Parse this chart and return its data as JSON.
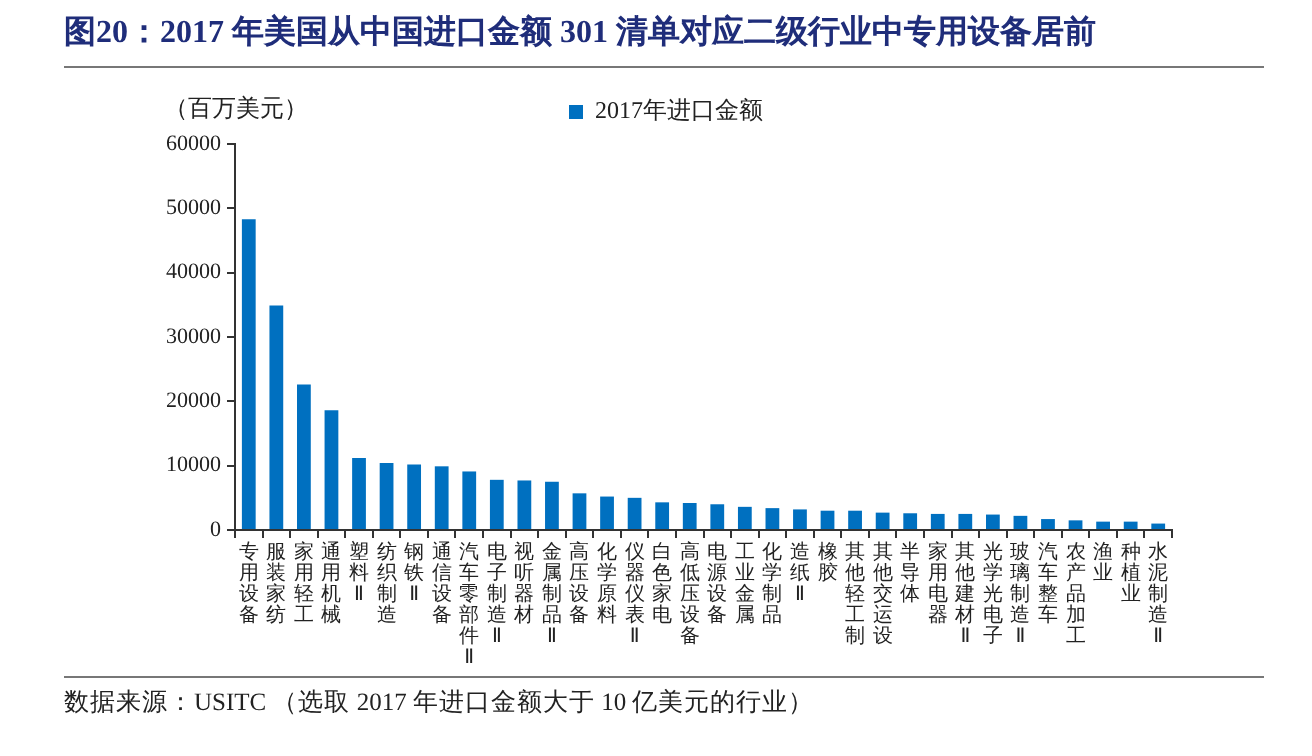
{
  "chart_data": {
    "type": "bar",
    "title": "图20：2017 年美国从中国进口金额 301 清单对应二级行业中专用设备居前",
    "ylabel": "（百万美元）",
    "categories": [
      "专用设备",
      "服装家纺",
      "家用轻工",
      "通用机械",
      "塑料Ⅱ",
      "纺织制造",
      "钢铁Ⅱ",
      "通信设备",
      "汽车零部件Ⅱ",
      "电子制造Ⅱ",
      "视听器材",
      "金属制品Ⅱ",
      "高压设备",
      "化学原料",
      "仪器仪表Ⅱ",
      "白色家电",
      "高低压设备",
      "电源设备",
      "工业金属",
      "化学制品",
      "造纸Ⅱ",
      "橡胶",
      "其他轻工制",
      "其他交运设",
      "半导体",
      "家用电器",
      "其他建材Ⅱ",
      "光学光电子",
      "玻璃制造Ⅱ",
      "汽车整车",
      "农产品加工",
      "渔业",
      "种植业",
      "水泥制造Ⅱ"
    ],
    "series": [
      {
        "name": "2017年进口金额",
        "color": "#0070c0",
        "values": [
          48300,
          34900,
          22600,
          18600,
          11200,
          10400,
          10200,
          9900,
          9100,
          7800,
          7700,
          7500,
          5700,
          5200,
          5000,
          4300,
          4200,
          4000,
          3600,
          3400,
          3200,
          3000,
          3000,
          2700,
          2600,
          2500,
          2500,
          2400,
          2200,
          1700,
          1500,
          1300,
          1300,
          1000
        ]
      }
    ],
    "ylim": [
      0,
      60000
    ],
    "yticks": [
      0,
      10000,
      20000,
      30000,
      40000,
      50000,
      60000
    ],
    "grid": false,
    "legend": "top",
    "annotations": [
      "数据来源：USITC （选取 2017 年进口金额大于 10 亿美元的行业）"
    ]
  }
}
